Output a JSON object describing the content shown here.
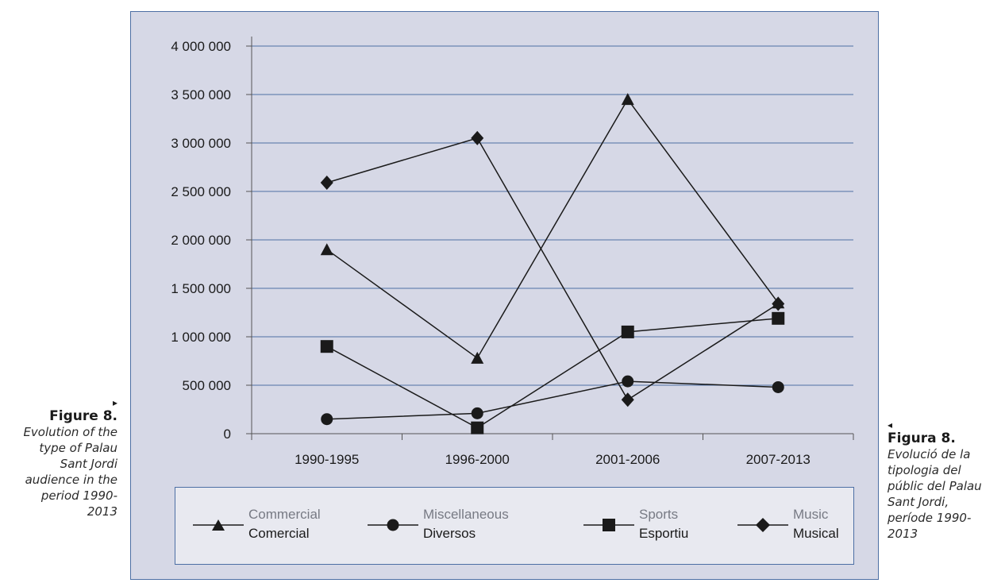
{
  "caption_left": {
    "arrow": "▸",
    "label": "Figure 8.",
    "lines": [
      "Evolution of the",
      "type of Palau",
      "Sant Jordi",
      "audience in the",
      "period 1990-",
      "2013"
    ]
  },
  "caption_right": {
    "arrow": "◂",
    "label": "Figura 8.",
    "lines": [
      "Evolució de la",
      "tipologia del",
      "públic del Palau",
      "Sant Jordi,",
      "període 1990-",
      "2013"
    ]
  },
  "chart_data": {
    "type": "line",
    "categories": [
      "1990-1995",
      "1996-2000",
      "2001-2006",
      "2007-2013"
    ],
    "ylim": [
      0,
      4000000
    ],
    "yticks": [
      0,
      500000,
      1000000,
      1500000,
      2000000,
      2500000,
      3000000,
      3500000,
      4000000
    ],
    "ytick_labels": [
      "0",
      "500 000",
      "1 000 000",
      "1 500 000",
      "2 000 000",
      "2 500 000",
      "3 000 000",
      "3 500 000",
      "4 000 000"
    ],
    "grid": true,
    "legend_position": "bottom",
    "line_color": "#1a1a1a",
    "grid_color": "#4d6fa4",
    "series": [
      {
        "name": "Commercial",
        "name_ca": "Comercial",
        "marker": "triangle",
        "values": [
          1900000,
          780000,
          3450000,
          1350000
        ]
      },
      {
        "name": "Miscellaneous",
        "name_ca": "Diversos",
        "marker": "circle",
        "values": [
          150000,
          210000,
          540000,
          480000
        ]
      },
      {
        "name": "Sports",
        "name_ca": "Esportiu",
        "marker": "square",
        "values": [
          900000,
          60000,
          1050000,
          1190000
        ]
      },
      {
        "name": "Music",
        "name_ca": "Musical",
        "marker": "diamond",
        "values": [
          2590000,
          3050000,
          350000,
          1340000
        ]
      }
    ]
  }
}
